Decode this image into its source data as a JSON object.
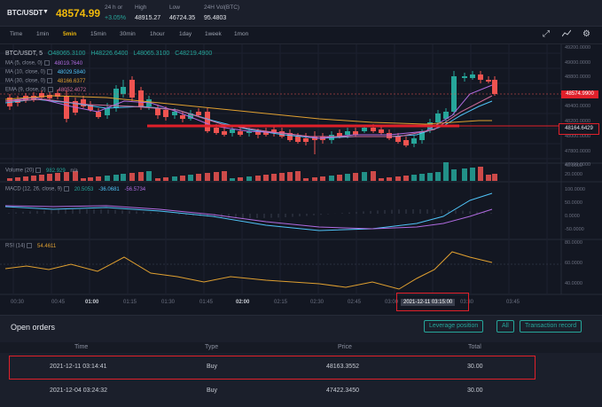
{
  "ticker": {
    "pair": "BTC/USDT",
    "last_price": "48574.99",
    "change_label": "24 h or",
    "change_value": "+3.05%",
    "high_label": "High",
    "high_value": "48915.27",
    "low_label": "Low",
    "low_value": "46724.35",
    "vol_label": "24H Vol(BTC)",
    "vol_value": "95.4803"
  },
  "toolbar": {
    "timeframes": [
      "Time",
      "1min",
      "5min",
      "15min",
      "30min",
      "1hour",
      "1day",
      "1week",
      "1mon"
    ],
    "active": "5min"
  },
  "chart": {
    "symbol": "BTC/USDT, 5",
    "ohlc": {
      "o": "O48065.3100",
      "h": "H48226.6400",
      "l": "L48065.3100",
      "c": "C48219.4900"
    },
    "indicators": [
      {
        "label": "MA (5, close, 0)",
        "value": "48019.7640",
        "color": "#b06be0"
      },
      {
        "label": "MA (10, close, 0)",
        "value": "48029.5840",
        "color": "#4fc3f7"
      },
      {
        "label": "MA (30, close, 0)",
        "value": "48166.6377",
        "color": "#e0a030"
      },
      {
        "label": "EMA (9, close, 0)",
        "value": "48052.4072",
        "color": "#d06b9a"
      }
    ],
    "price_ticks": [
      "49200.0000",
      "49000.0000",
      "48800.0000",
      "48600.0000",
      "48400.0000",
      "48200.0000",
      "48000.0000",
      "47800.0000",
      "47600.0000"
    ],
    "last_price_tag": "48574.9900",
    "marked_price_tag": "48164.6429",
    "volume": {
      "label": "Volume (20)",
      "value": "982.929",
      "extra": "n/a",
      "ticks": [
        "40.0000",
        "20.0000"
      ]
    },
    "macd": {
      "label": "MACD (12, 26, close, 9)",
      "v1": "20.5053",
      "v2": "-36.0681",
      "v3": "-56.5734",
      "ticks": [
        "100.0000",
        "50.0000",
        "0.0000",
        "-50.0000"
      ]
    },
    "rsi": {
      "label": "RSI (14)",
      "value": "54.4611",
      "ticks": [
        "80.0000",
        "60.0000",
        "40.0000"
      ]
    },
    "time_ticks": [
      "00:30",
      "00:45",
      "01:00",
      "01:15",
      "01:30",
      "01:45",
      "02:00",
      "02:15",
      "02:30",
      "02:45",
      "03:00",
      "03:30",
      "03:45"
    ],
    "crosshair_time": "2021-12-11 03:15:00",
    "colors": {
      "up": "#26a69a",
      "down": "#ef5350",
      "annotation": "#e0202a"
    }
  },
  "orders": {
    "title": "Open orders",
    "buttons": [
      "Leverage position",
      "All",
      "Transaction record"
    ],
    "headers": [
      "Time",
      "Type",
      "Price",
      "Total"
    ],
    "rows": [
      {
        "time": "2021-12-11 03:14:41",
        "type": "Buy",
        "price": "48163.3552",
        "total": "30.00"
      },
      {
        "time": "2021-12-04 03:24:32",
        "type": "Buy",
        "price": "47422.3450",
        "total": "30.00"
      }
    ]
  }
}
